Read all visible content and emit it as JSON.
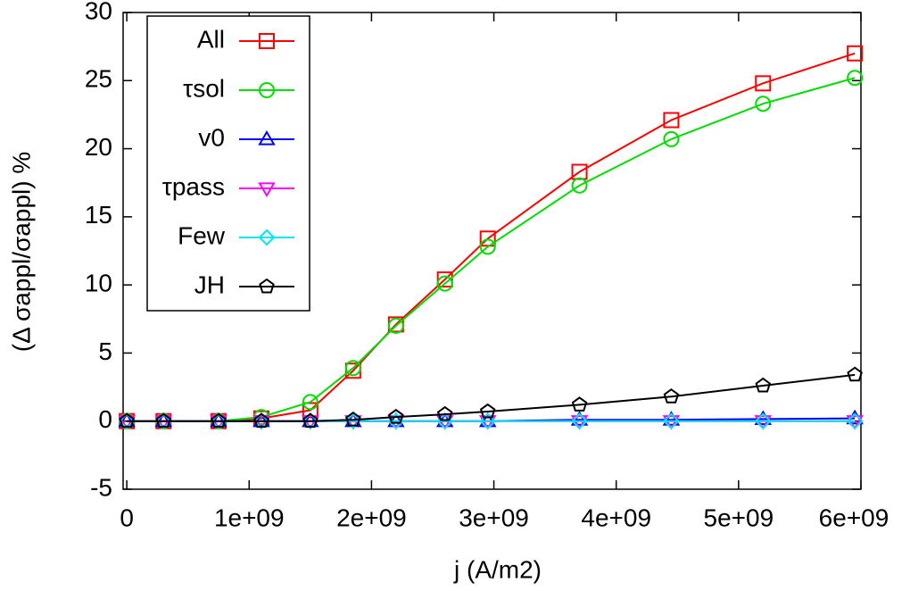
{
  "chart_data": {
    "type": "line",
    "x_label": "j (A/m2)",
    "y_label": "(Δ σappl/σappl) %",
    "x": [
      0,
      300000000,
      750000000,
      1100000000,
      1500000000,
      1850000000,
      2200000000,
      2600000000,
      2950000000,
      3700000000,
      4450000000,
      5200000000,
      5950000000
    ],
    "series": [
      {
        "name": "All",
        "color": "#ff0000",
        "marker": "square",
        "values": [
          0,
          0,
          0,
          0.2,
          0.8,
          3.7,
          7.1,
          10.4,
          13.4,
          18.3,
          22.1,
          24.8,
          27.0
        ]
      },
      {
        "name": "τsol",
        "color": "#00dd00",
        "marker": "circle",
        "values": [
          0,
          0,
          0,
          0.3,
          1.4,
          3.9,
          7.0,
          10.1,
          12.8,
          17.3,
          20.7,
          23.3,
          25.2
        ]
      },
      {
        "name": "v0",
        "color": "#0000ff",
        "marker": "triangle",
        "values": [
          0,
          0,
          0,
          0,
          0,
          0,
          0,
          0,
          0,
          0.1,
          0.1,
          0.15,
          0.2
        ]
      },
      {
        "name": "τpass",
        "color": "#ff00ff",
        "marker": "triangle-down",
        "values": [
          0,
          0,
          0,
          0,
          0,
          0,
          0,
          0,
          0,
          0,
          0,
          0,
          0
        ]
      },
      {
        "name": "Few",
        "color": "#00e5ee",
        "marker": "diamond",
        "values": [
          0,
          0,
          0,
          0,
          0,
          0,
          0,
          0,
          0,
          0,
          0,
          0,
          0
        ]
      },
      {
        "name": "JH",
        "color": "#000000",
        "marker": "pentagon",
        "values": [
          0,
          0,
          0,
          0,
          0,
          0.1,
          0.3,
          0.5,
          0.7,
          1.2,
          1.8,
          2.6,
          3.4
        ]
      }
    ],
    "xlim": [
      -30000000,
      6000000000
    ],
    "xticks": [
      0,
      {
        "value": 1000000000,
        "label": "1e+09"
      },
      {
        "value": 2000000000,
        "label": "2e+09"
      },
      {
        "value": 3000000000,
        "label": "3e+09"
      },
      {
        "value": 4000000000,
        "label": "4e+09"
      },
      {
        "value": 5000000000,
        "label": "5e+09"
      },
      {
        "value": 6000000000,
        "label": "6e+09"
      }
    ],
    "ylim": [
      -5,
      30
    ],
    "yticks": [
      -5,
      0,
      5,
      10,
      15,
      20,
      25,
      30
    ],
    "grid": false,
    "legend": "top-left"
  }
}
